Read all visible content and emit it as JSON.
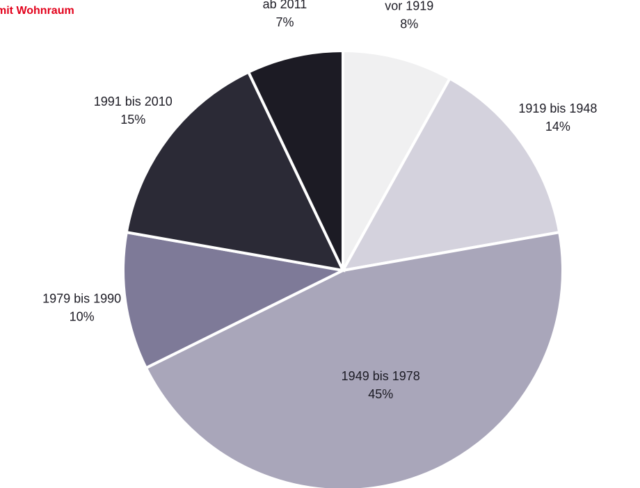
{
  "chart_data": {
    "type": "pie",
    "title": "mit Wohnraum",
    "categories": [
      "vor 1919",
      "1919 bis 1948",
      "1949 bis 1978",
      "1979 bis 1990",
      "1991 bis 2010",
      "ab 2011"
    ],
    "values": [
      8,
      14,
      45,
      10,
      15,
      7
    ],
    "value_labels": [
      "8%",
      "14%",
      "45%",
      "10%",
      "15%",
      "7%"
    ],
    "colors": [
      "#f0f0f1",
      "#d4d2dd",
      "#a9a6ba",
      "#7e7a98",
      "#2b2a36",
      "#1c1b24"
    ]
  }
}
